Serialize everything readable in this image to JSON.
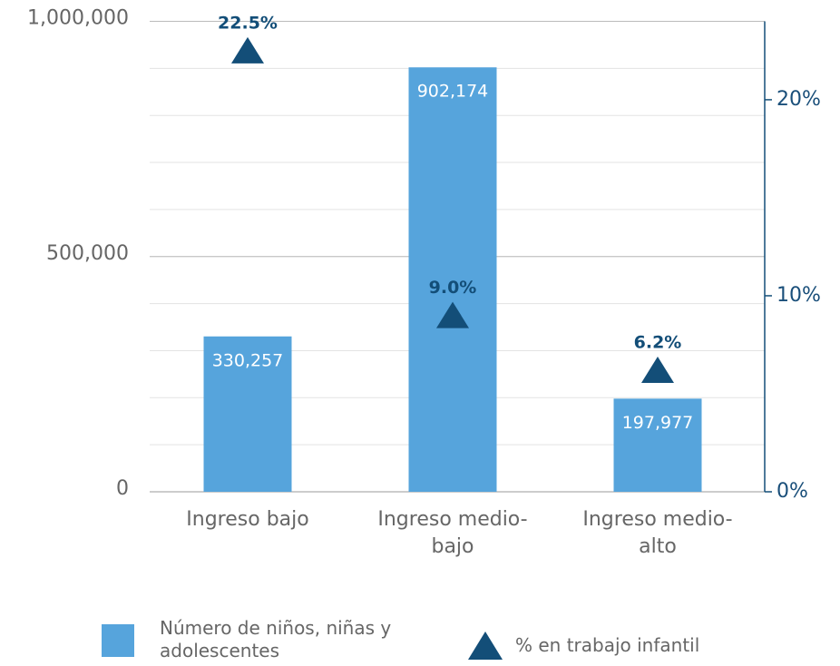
{
  "chart_data": {
    "type": "bar",
    "categories": [
      "Ingreso bajo",
      "Ingreso medio-bajo",
      "Ingreso medio-alto"
    ],
    "series": [
      {
        "name": "Número de niños, niñas y adolescentes",
        "color": "#56a4dc",
        "type": "bar",
        "values": [
          330257,
          902174,
          197977
        ],
        "value_labels": [
          "330,257",
          "902,174",
          "197,977"
        ]
      },
      {
        "name": "% en trabajo infantil",
        "color": "#134e78",
        "type": "triangle",
        "axis": "y2",
        "values": [
          22.5,
          9.0,
          6.2
        ],
        "value_labels": [
          "22.5%",
          "9.0%",
          "6.2%"
        ]
      }
    ],
    "ylim": [
      0,
      1000000
    ],
    "yticks": [
      0,
      {
        "value": 500000,
        "label": "500,000"
      },
      {
        "value": 1000000,
        "label": "1,000,000"
      }
    ],
    "ygrid": [
      100000,
      200000,
      300000,
      400000,
      500000,
      600000,
      700000,
      800000,
      900000
    ],
    "y2lim": [
      0,
      24
    ],
    "y2ticks": [
      {
        "value": 0,
        "label": "0%"
      },
      {
        "value": 10,
        "label": "10%"
      },
      {
        "value": 20,
        "label": "20%"
      }
    ],
    "legend": "bottom"
  }
}
